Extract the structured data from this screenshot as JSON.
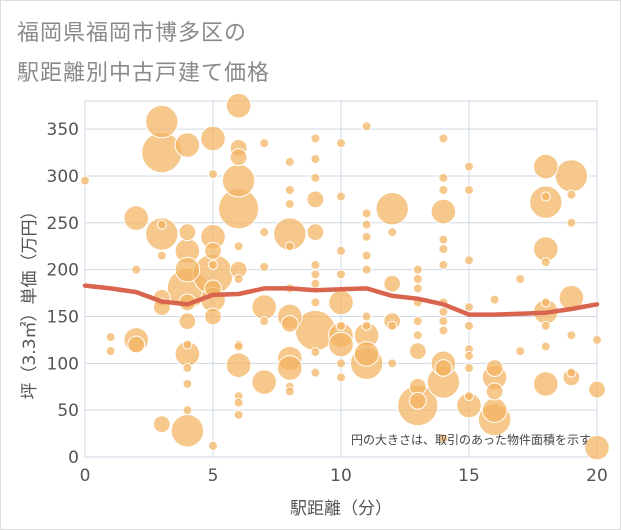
{
  "page": {
    "title_line1": "福岡県福岡市博多区の",
    "title_line2": "駅距離別中古戸建て価格"
  },
  "chart_data": {
    "type": "scatter",
    "xlabel": "駅距離（分）",
    "ylabel": "坪（3.3㎡）単価（万円）",
    "xlim": [
      0,
      20
    ],
    "ylim": [
      0,
      380
    ],
    "x_ticks": [
      0,
      5,
      10,
      15,
      20
    ],
    "y_ticks": [
      0,
      50,
      100,
      150,
      200,
      250,
      300,
      350
    ],
    "grid": true,
    "annotation": "円の大きさは、取引のあった物件面積を示す",
    "colors": {
      "bubble": "#f2b35f",
      "trend": "#d9654f",
      "grid": "#cfd9e4"
    },
    "points": [
      {
        "x": 0,
        "y": 295,
        "s": 1
      },
      {
        "x": 1,
        "y": 128,
        "s": 1
      },
      {
        "x": 1,
        "y": 113,
        "s": 1
      },
      {
        "x": 2,
        "y": 255,
        "s": 3
      },
      {
        "x": 2,
        "y": 200,
        "s": 1
      },
      {
        "x": 2,
        "y": 125,
        "s": 3
      },
      {
        "x": 2,
        "y": 120,
        "s": 2
      },
      {
        "x": 3,
        "y": 358,
        "s": 4
      },
      {
        "x": 3,
        "y": 325,
        "s": 5
      },
      {
        "x": 3,
        "y": 248,
        "s": 1
      },
      {
        "x": 3,
        "y": 238,
        "s": 4
      },
      {
        "x": 3,
        "y": 215,
        "s": 1
      },
      {
        "x": 3,
        "y": 170,
        "s": 2
      },
      {
        "x": 3,
        "y": 160,
        "s": 2
      },
      {
        "x": 3,
        "y": 35,
        "s": 2
      },
      {
        "x": 4,
        "y": 333,
        "s": 3
      },
      {
        "x": 4,
        "y": 240,
        "s": 2
      },
      {
        "x": 4,
        "y": 220,
        "s": 3
      },
      {
        "x": 4,
        "y": 200,
        "s": 3
      },
      {
        "x": 4,
        "y": 180,
        "s": 5
      },
      {
        "x": 4,
        "y": 165,
        "s": 2
      },
      {
        "x": 4,
        "y": 145,
        "s": 2
      },
      {
        "x": 4,
        "y": 120,
        "s": 1
      },
      {
        "x": 4,
        "y": 110,
        "s": 3
      },
      {
        "x": 4,
        "y": 95,
        "s": 1
      },
      {
        "x": 4,
        "y": 78,
        "s": 1
      },
      {
        "x": 4,
        "y": 50,
        "s": 1
      },
      {
        "x": 4,
        "y": 28,
        "s": 4
      },
      {
        "x": 5,
        "y": 340,
        "s": 3
      },
      {
        "x": 5,
        "y": 302,
        "s": 1
      },
      {
        "x": 5,
        "y": 235,
        "s": 3
      },
      {
        "x": 5,
        "y": 220,
        "s": 2
      },
      {
        "x": 5,
        "y": 205,
        "s": 1
      },
      {
        "x": 5,
        "y": 195,
        "s": 5
      },
      {
        "x": 5,
        "y": 180,
        "s": 2
      },
      {
        "x": 5,
        "y": 168,
        "s": 3
      },
      {
        "x": 5,
        "y": 150,
        "s": 2
      },
      {
        "x": 5,
        "y": 12,
        "s": 1
      },
      {
        "x": 6,
        "y": 375,
        "s": 3
      },
      {
        "x": 6,
        "y": 330,
        "s": 2
      },
      {
        "x": 6,
        "y": 320,
        "s": 2
      },
      {
        "x": 6,
        "y": 295,
        "s": 4
      },
      {
        "x": 6,
        "y": 265,
        "s": 5
      },
      {
        "x": 6,
        "y": 225,
        "s": 1
      },
      {
        "x": 6,
        "y": 200,
        "s": 2
      },
      {
        "x": 6,
        "y": 190,
        "s": 1
      },
      {
        "x": 6,
        "y": 120,
        "s": 1
      },
      {
        "x": 6,
        "y": 118,
        "s": 1
      },
      {
        "x": 6,
        "y": 98,
        "s": 3
      },
      {
        "x": 6,
        "y": 65,
        "s": 1
      },
      {
        "x": 6,
        "y": 58,
        "s": 1
      },
      {
        "x": 6,
        "y": 45,
        "s": 1
      },
      {
        "x": 7,
        "y": 335,
        "s": 1
      },
      {
        "x": 7,
        "y": 240,
        "s": 1
      },
      {
        "x": 7,
        "y": 203,
        "s": 1
      },
      {
        "x": 7,
        "y": 160,
        "s": 3
      },
      {
        "x": 7,
        "y": 145,
        "s": 1
      },
      {
        "x": 7,
        "y": 80,
        "s": 3
      },
      {
        "x": 8,
        "y": 315,
        "s": 1
      },
      {
        "x": 8,
        "y": 285,
        "s": 1
      },
      {
        "x": 8,
        "y": 270,
        "s": 1
      },
      {
        "x": 8,
        "y": 238,
        "s": 4
      },
      {
        "x": 8,
        "y": 225,
        "s": 1
      },
      {
        "x": 8,
        "y": 180,
        "s": 1
      },
      {
        "x": 8,
        "y": 150,
        "s": 3
      },
      {
        "x": 8,
        "y": 142,
        "s": 2
      },
      {
        "x": 8,
        "y": 105,
        "s": 3
      },
      {
        "x": 8,
        "y": 95,
        "s": 3
      },
      {
        "x": 8,
        "y": 75,
        "s": 1
      },
      {
        "x": 8,
        "y": 70,
        "s": 1
      },
      {
        "x": 9,
        "y": 340,
        "s": 1
      },
      {
        "x": 9,
        "y": 318,
        "s": 1
      },
      {
        "x": 9,
        "y": 298,
        "s": 1
      },
      {
        "x": 9,
        "y": 275,
        "s": 2
      },
      {
        "x": 9,
        "y": 240,
        "s": 2
      },
      {
        "x": 9,
        "y": 205,
        "s": 1
      },
      {
        "x": 9,
        "y": 195,
        "s": 1
      },
      {
        "x": 9,
        "y": 185,
        "s": 1
      },
      {
        "x": 9,
        "y": 165,
        "s": 1
      },
      {
        "x": 9,
        "y": 135,
        "s": 5
      },
      {
        "x": 9,
        "y": 112,
        "s": 1
      },
      {
        "x": 9,
        "y": 90,
        "s": 1
      },
      {
        "x": 10,
        "y": 335,
        "s": 1
      },
      {
        "x": 10,
        "y": 278,
        "s": 1
      },
      {
        "x": 10,
        "y": 220,
        "s": 1
      },
      {
        "x": 10,
        "y": 195,
        "s": 1
      },
      {
        "x": 10,
        "y": 165,
        "s": 3
      },
      {
        "x": 10,
        "y": 140,
        "s": 1
      },
      {
        "x": 10,
        "y": 130,
        "s": 3
      },
      {
        "x": 10,
        "y": 120,
        "s": 3
      },
      {
        "x": 10,
        "y": 100,
        "s": 1
      },
      {
        "x": 10,
        "y": 85,
        "s": 1
      },
      {
        "x": 11,
        "y": 353,
        "s": 1
      },
      {
        "x": 11,
        "y": 260,
        "s": 1
      },
      {
        "x": 11,
        "y": 248,
        "s": 1
      },
      {
        "x": 11,
        "y": 235,
        "s": 1
      },
      {
        "x": 11,
        "y": 215,
        "s": 1
      },
      {
        "x": 11,
        "y": 200,
        "s": 1
      },
      {
        "x": 11,
        "y": 150,
        "s": 1
      },
      {
        "x": 11,
        "y": 140,
        "s": 1
      },
      {
        "x": 11,
        "y": 130,
        "s": 3
      },
      {
        "x": 11,
        "y": 110,
        "s": 3
      },
      {
        "x": 11,
        "y": 100,
        "s": 4
      },
      {
        "x": 12,
        "y": 265,
        "s": 4
      },
      {
        "x": 12,
        "y": 240,
        "s": 1
      },
      {
        "x": 12,
        "y": 185,
        "s": 2
      },
      {
        "x": 12,
        "y": 145,
        "s": 2
      },
      {
        "x": 12,
        "y": 140,
        "s": 1
      },
      {
        "x": 12,
        "y": 100,
        "s": 1
      },
      {
        "x": 13,
        "y": 200,
        "s": 1
      },
      {
        "x": 13,
        "y": 190,
        "s": 1
      },
      {
        "x": 13,
        "y": 180,
        "s": 1
      },
      {
        "x": 13,
        "y": 165,
        "s": 1
      },
      {
        "x": 13,
        "y": 145,
        "s": 1
      },
      {
        "x": 13,
        "y": 130,
        "s": 1
      },
      {
        "x": 13,
        "y": 113,
        "s": 2
      },
      {
        "x": 13,
        "y": 75,
        "s": 2
      },
      {
        "x": 13,
        "y": 60,
        "s": 2
      },
      {
        "x": 13,
        "y": 55,
        "s": 5
      },
      {
        "x": 14,
        "y": 340,
        "s": 1
      },
      {
        "x": 14,
        "y": 298,
        "s": 1
      },
      {
        "x": 14,
        "y": 285,
        "s": 1
      },
      {
        "x": 14,
        "y": 262,
        "s": 3
      },
      {
        "x": 14,
        "y": 232,
        "s": 1
      },
      {
        "x": 14,
        "y": 222,
        "s": 1
      },
      {
        "x": 14,
        "y": 205,
        "s": 1
      },
      {
        "x": 14,
        "y": 165,
        "s": 1
      },
      {
        "x": 14,
        "y": 155,
        "s": 1
      },
      {
        "x": 14,
        "y": 145,
        "s": 1
      },
      {
        "x": 14,
        "y": 135,
        "s": 1
      },
      {
        "x": 14,
        "y": 100,
        "s": 3
      },
      {
        "x": 14,
        "y": 95,
        "s": 2
      },
      {
        "x": 14,
        "y": 80,
        "s": 4
      },
      {
        "x": 14,
        "y": 20,
        "s": 1
      },
      {
        "x": 15,
        "y": 310,
        "s": 1
      },
      {
        "x": 15,
        "y": 285,
        "s": 1
      },
      {
        "x": 15,
        "y": 210,
        "s": 1
      },
      {
        "x": 15,
        "y": 160,
        "s": 1
      },
      {
        "x": 15,
        "y": 140,
        "s": 1
      },
      {
        "x": 15,
        "y": 115,
        "s": 1
      },
      {
        "x": 15,
        "y": 108,
        "s": 1
      },
      {
        "x": 15,
        "y": 95,
        "s": 1
      },
      {
        "x": 15,
        "y": 65,
        "s": 1
      },
      {
        "x": 15,
        "y": 55,
        "s": 3
      },
      {
        "x": 16,
        "y": 168,
        "s": 1
      },
      {
        "x": 16,
        "y": 95,
        "s": 2
      },
      {
        "x": 16,
        "y": 85,
        "s": 3
      },
      {
        "x": 16,
        "y": 70,
        "s": 2
      },
      {
        "x": 16,
        "y": 50,
        "s": 3
      },
      {
        "x": 16,
        "y": 40,
        "s": 4
      },
      {
        "x": 17,
        "y": 190,
        "s": 1
      },
      {
        "x": 17,
        "y": 113,
        "s": 1
      },
      {
        "x": 18,
        "y": 310,
        "s": 3
      },
      {
        "x": 18,
        "y": 278,
        "s": 1
      },
      {
        "x": 18,
        "y": 272,
        "s": 4
      },
      {
        "x": 18,
        "y": 222,
        "s": 3
      },
      {
        "x": 18,
        "y": 208,
        "s": 1
      },
      {
        "x": 18,
        "y": 165,
        "s": 1
      },
      {
        "x": 18,
        "y": 155,
        "s": 3
      },
      {
        "x": 18,
        "y": 140,
        "s": 1
      },
      {
        "x": 18,
        "y": 118,
        "s": 1
      },
      {
        "x": 18,
        "y": 78,
        "s": 3
      },
      {
        "x": 19,
        "y": 300,
        "s": 4
      },
      {
        "x": 19,
        "y": 280,
        "s": 1
      },
      {
        "x": 19,
        "y": 250,
        "s": 1
      },
      {
        "x": 19,
        "y": 170,
        "s": 3
      },
      {
        "x": 19,
        "y": 130,
        "s": 1
      },
      {
        "x": 19,
        "y": 90,
        "s": 1
      },
      {
        "x": 19,
        "y": 85,
        "s": 2
      },
      {
        "x": 20,
        "y": 125,
        "s": 1
      },
      {
        "x": 20,
        "y": 72,
        "s": 2
      },
      {
        "x": 20,
        "y": 10,
        "s": 3
      }
    ],
    "trend": {
      "name": "",
      "x": [
        0,
        1,
        2,
        3,
        4,
        5,
        6,
        7,
        8,
        9,
        10,
        11,
        12,
        13,
        14,
        15,
        16,
        17,
        18,
        19,
        20
      ],
      "y": [
        183,
        180,
        176,
        166,
        163,
        173,
        174,
        180,
        180,
        178,
        179,
        180,
        172,
        169,
        163,
        152,
        152,
        153,
        154,
        158,
        163
      ]
    }
  }
}
